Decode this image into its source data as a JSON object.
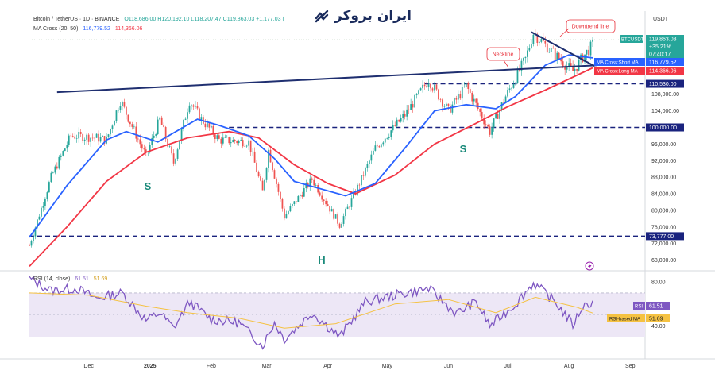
{
  "header": {
    "symbol": "Bitcoin / TetherUS · 1D · BINANCE",
    "ohlc": "O118,686.00 H120,192.10 L118,207.47 C119,863.03 +1,177.03 (",
    "ma_label": "MA Cross (20, 50)",
    "ma_short_value": "116,779.52",
    "ma_long_value": "114,366.06",
    "rsi_label": "RSI (14, close)",
    "rsi_value": "61.51",
    "rsi_ma_value": "51.69",
    "currency": "USDT"
  },
  "logo": {
    "text": "ایران بروکر",
    "icon": "broker-logo-icon"
  },
  "colors": {
    "price_up": "#26a69a",
    "price_down": "#ef5350",
    "ma_short": "#2962ff",
    "ma_long": "#f23645",
    "trendline": "#1f2f70",
    "rsi_line": "#7e57c2",
    "rsi_ma": "#f5c242",
    "rsi_band": "#ede7f6",
    "annotation": "#e8303a"
  },
  "chart_data": [
    {
      "type": "candlestick",
      "title": "Bitcoin / TetherUS · 1D · BINANCE",
      "x_ticks": [
        "Dec",
        "2025",
        "Feb",
        "Mar",
        "Apr",
        "May",
        "Jun",
        "Jul",
        "Aug",
        "Sep"
      ],
      "y_ticks": [
        "108,000.00",
        "104,000.00",
        "100,000.00",
        "96,000.00",
        "92,000.00",
        "88,000.00",
        "84,000.00",
        "80,000.00",
        "76,000.00",
        "72,000.00",
        "68,000.00"
      ],
      "ylim": [
        66000,
        125000
      ],
      "price_path": [
        [
          "2024-11-01",
          71500
        ],
        [
          "2024-11-12",
          88000
        ],
        [
          "2024-11-22",
          98000
        ],
        [
          "2024-12-05",
          97500
        ],
        [
          "2024-12-10",
          97000
        ],
        [
          "2024-12-17",
          106500
        ],
        [
          "2024-12-30",
          93000
        ],
        [
          "2025-01-06",
          102000
        ],
        [
          "2025-01-13",
          91500
        ],
        [
          "2025-01-21",
          106500
        ],
        [
          "2025-01-27",
          102000
        ],
        [
          "2025-02-05",
          97000
        ],
        [
          "2025-02-20",
          96500
        ],
        [
          "2025-02-27",
          84500
        ],
        [
          "2025-03-02",
          94500
        ],
        [
          "2025-03-10",
          78500
        ],
        [
          "2025-03-24",
          87500
        ],
        [
          "2025-04-07",
          76500
        ],
        [
          "2025-04-15",
          84500
        ],
        [
          "2025-04-25",
          95000
        ],
        [
          "2025-05-10",
          103000
        ],
        [
          "2025-05-22",
          111500
        ],
        [
          "2025-06-01",
          104000
        ],
        [
          "2025-06-10",
          110000
        ],
        [
          "2025-06-22",
          99000
        ],
        [
          "2025-06-30",
          107500
        ],
        [
          "2025-07-10",
          116500
        ],
        [
          "2025-07-14",
          122800
        ],
        [
          "2025-07-25",
          117500
        ],
        [
          "2025-08-03",
          113500
        ],
        [
          "2025-08-08",
          117000
        ],
        [
          "2025-08-13",
          119863
        ]
      ],
      "ma_short_path": [
        [
          "2024-11-01",
          73500
        ],
        [
          "2024-11-20",
          86000
        ],
        [
          "2024-12-10",
          97000
        ],
        [
          "2024-12-20",
          99000
        ],
        [
          "2025-01-05",
          96500
        ],
        [
          "2025-01-25",
          102000
        ],
        [
          "2025-02-05",
          100500
        ],
        [
          "2025-02-20",
          98000
        ],
        [
          "2025-03-05",
          92500
        ],
        [
          "2025-03-15",
          87000
        ],
        [
          "2025-04-10",
          83500
        ],
        [
          "2025-04-25",
          86500
        ],
        [
          "2025-05-10",
          95000
        ],
        [
          "2025-05-25",
          104000
        ],
        [
          "2025-06-10",
          105500
        ],
        [
          "2025-06-25",
          104500
        ],
        [
          "2025-07-05",
          107500
        ],
        [
          "2025-07-20",
          115000
        ],
        [
          "2025-08-01",
          117500
        ],
        [
          "2025-08-13",
          116779.52
        ]
      ],
      "ma_long_path": [
        [
          "2024-11-01",
          66500
        ],
        [
          "2024-11-20",
          76000
        ],
        [
          "2024-12-10",
          87000
        ],
        [
          "2024-12-30",
          94000
        ],
        [
          "2025-01-20",
          97500
        ],
        [
          "2025-02-10",
          99000
        ],
        [
          "2025-02-25",
          97500
        ],
        [
          "2025-03-15",
          91000
        ],
        [
          "2025-04-01",
          86500
        ],
        [
          "2025-04-15",
          84000
        ],
        [
          "2025-05-05",
          88500
        ],
        [
          "2025-05-25",
          96000
        ],
        [
          "2025-06-15",
          101000
        ],
        [
          "2025-07-01",
          105000
        ],
        [
          "2025-07-20",
          109000
        ],
        [
          "2025-08-13",
          114366.06
        ]
      ],
      "horizontal_levels": [
        {
          "value": 110530,
          "label": "110,530.00"
        },
        {
          "value": 100000,
          "label": "100,000.00"
        },
        {
          "value": 73777,
          "label": "73,777.00"
        }
      ],
      "last_price": {
        "label": "BTCUSDT",
        "value": "119,863.03",
        "change": "+35.21%",
        "countdown": "07:40:17"
      },
      "ma_tags": [
        {
          "name": "MA Cross:Short MA",
          "value": "116,779.52"
        },
        {
          "name": "MA Cross:Long MA",
          "value": "114,366.06"
        }
      ],
      "annotations": [
        "Neckline",
        "Downtrend line"
      ],
      "pattern_labels": [
        "S",
        "H",
        "S"
      ]
    },
    {
      "type": "line",
      "title": "RSI (14, close)",
      "y_ticks": [
        "80.00",
        "40.00"
      ],
      "ylim": [
        15,
        88
      ],
      "band": [
        30,
        70
      ],
      "rsi_path": [
        [
          "2024-11-01",
          83
        ],
        [
          "2024-11-12",
          72
        ],
        [
          "2024-11-25",
          74
        ],
        [
          "2024-12-05",
          65
        ],
        [
          "2024-12-18",
          70
        ],
        [
          "2024-12-30",
          45
        ],
        [
          "2025-01-06",
          52
        ],
        [
          "2025-01-13",
          38
        ],
        [
          "2025-01-21",
          62
        ],
        [
          "2025-02-01",
          46
        ],
        [
          "2025-02-15",
          43
        ],
        [
          "2025-02-27",
          22
        ],
        [
          "2025-03-05",
          43
        ],
        [
          "2025-03-10",
          28
        ],
        [
          "2025-03-24",
          52
        ],
        [
          "2025-04-07",
          30
        ],
        [
          "2025-04-20",
          62
        ],
        [
          "2025-05-05",
          68
        ],
        [
          "2025-05-22",
          74
        ],
        [
          "2025-06-05",
          51
        ],
        [
          "2025-06-15",
          62
        ],
        [
          "2025-06-22",
          40
        ],
        [
          "2025-07-05",
          60
        ],
        [
          "2025-07-14",
          79
        ],
        [
          "2025-07-25",
          62
        ],
        [
          "2025-08-03",
          41
        ],
        [
          "2025-08-08",
          58
        ],
        [
          "2025-08-13",
          61.51
        ]
      ],
      "rsi_ma_path": [
        [
          "2024-11-01",
          70
        ],
        [
          "2024-12-01",
          68
        ],
        [
          "2024-12-30",
          58
        ],
        [
          "2025-01-20",
          52
        ],
        [
          "2025-02-15",
          47
        ],
        [
          "2025-03-10",
          38
        ],
        [
          "2025-04-05",
          42
        ],
        [
          "2025-05-05",
          60
        ],
        [
          "2025-06-01",
          64
        ],
        [
          "2025-06-25",
          52
        ],
        [
          "2025-07-15",
          66
        ],
        [
          "2025-08-05",
          57
        ],
        [
          "2025-08-13",
          51.69
        ]
      ],
      "tags": [
        {
          "name": "RSI",
          "value": "61.51"
        },
        {
          "name": "RSI-based MA",
          "value": "51.69"
        }
      ]
    }
  ]
}
